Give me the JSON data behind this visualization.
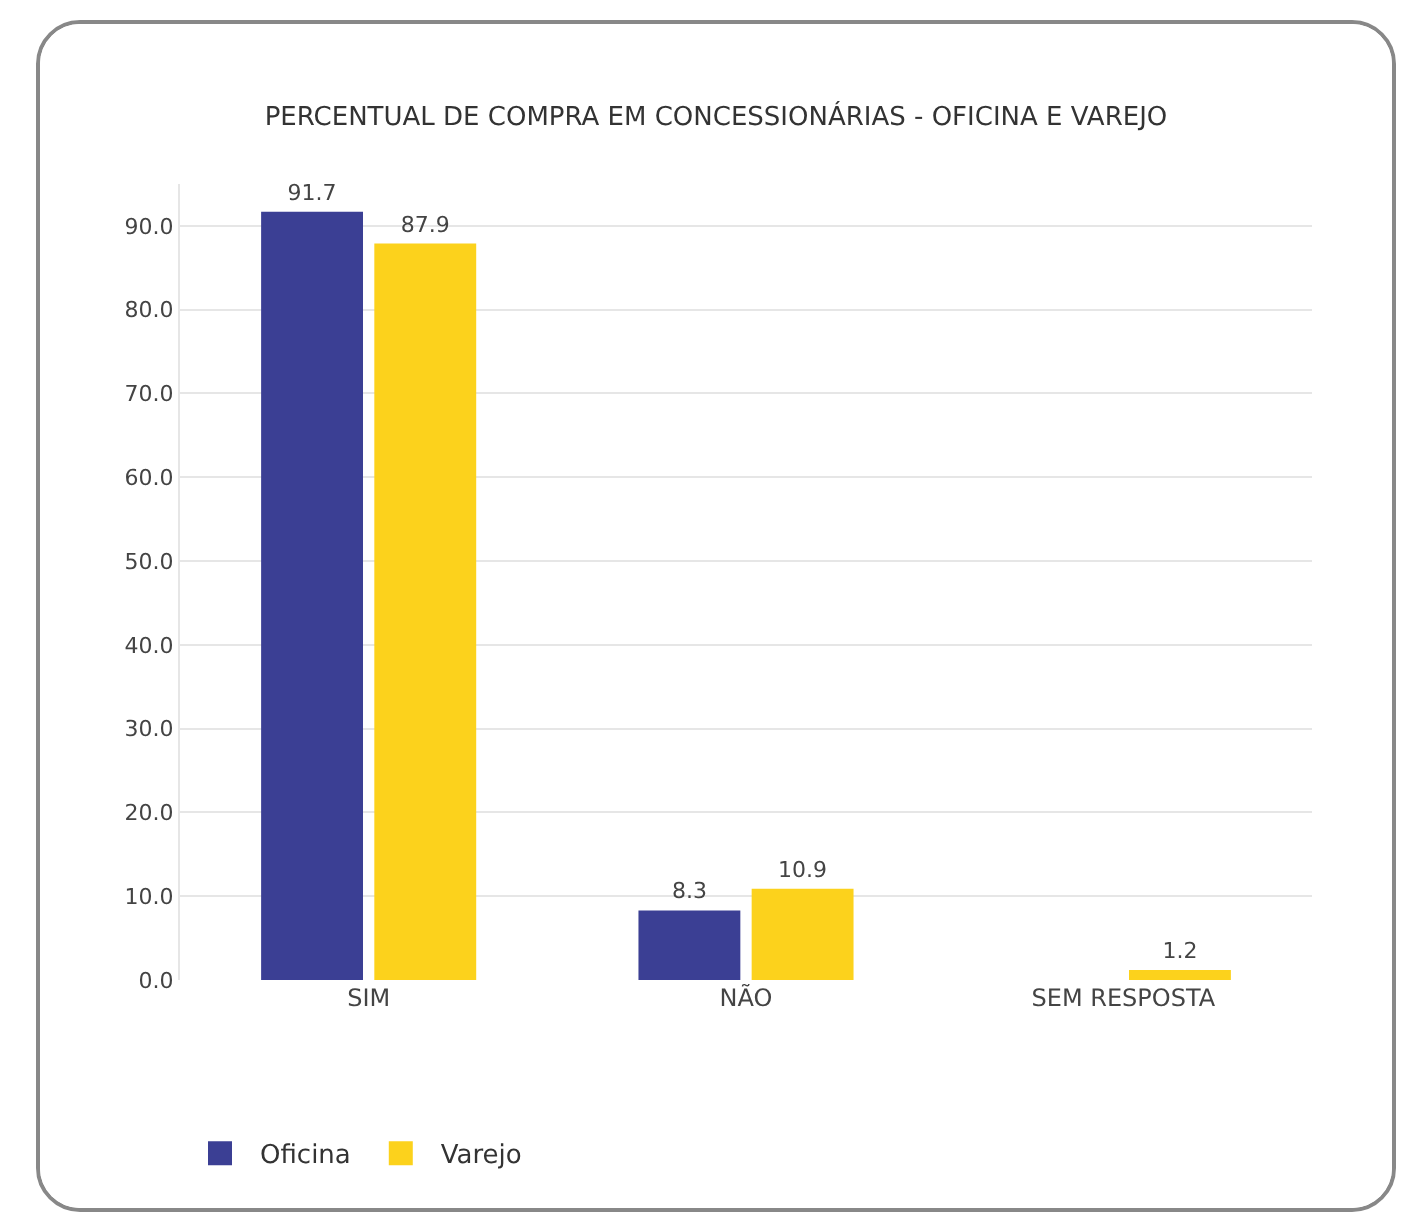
{
  "chart_data": {
    "type": "bar",
    "title": "PERCENTUAL DE COMPRA EM CONCESSIONÁRIAS - OFICINA E VAREJO",
    "categories": [
      "SIM",
      "NÃO",
      "SEM RESPOSTA"
    ],
    "series": [
      {
        "name": "Oficina",
        "color": "#3b3f94",
        "values": [
          91.7,
          8.3,
          null
        ]
      },
      {
        "name": "Varejo",
        "color": "#fcd21c",
        "values": [
          87.9,
          10.9,
          1.2
        ]
      }
    ],
    "ylim": [
      0,
      95
    ],
    "yticks": [
      {
        "value": 0,
        "label": "0.0"
      },
      {
        "value": 10,
        "label": "10.0"
      },
      {
        "value": 20,
        "label": "20.0"
      },
      {
        "value": 30,
        "label": "30.0"
      },
      {
        "value": 40,
        "label": "40.0"
      },
      {
        "value": 50,
        "label": "50.0"
      },
      {
        "value": 60,
        "label": "60.0"
      },
      {
        "value": 70,
        "label": "70.0"
      },
      {
        "value": 80,
        "label": "80.0"
      },
      {
        "value": 90,
        "label": "90.0"
      }
    ],
    "grid": "y",
    "legend": "bottom left",
    "data_labels": true
  }
}
